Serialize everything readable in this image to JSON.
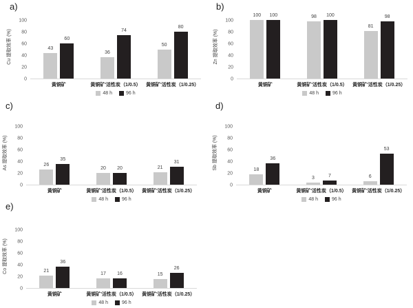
{
  "figure": {
    "panels": [
      "a)",
      "b)",
      "c)",
      "d)",
      "e)"
    ],
    "colors": {
      "bar_48h": "#c9c9c9",
      "bar_96h": "#231f20",
      "text": "#404040",
      "axis": "#d9d9d9"
    }
  },
  "chart_data": [
    {
      "panel": "a)",
      "type": "bar",
      "title": "",
      "xlabel": "",
      "ylabel": "Cu 提取效率 (%)",
      "ylim": [
        0,
        100
      ],
      "yticks": [
        0,
        20,
        40,
        60,
        80,
        100
      ],
      "grid": false,
      "legend_position": "bottom",
      "categories": [
        "黄铜矿",
        "黄铜矿'活性炭（1/0.5）",
        "黄铜矿'活性炭（1/0.25）"
      ],
      "series": [
        {
          "name": "48 h",
          "color": "#c9c9c9",
          "values": [
            43,
            36,
            50
          ]
        },
        {
          "name": "96 h",
          "color": "#231f20",
          "values": [
            60,
            74,
            80
          ]
        }
      ]
    },
    {
      "panel": "b)",
      "type": "bar",
      "title": "",
      "xlabel": "",
      "ylabel": "Zn 提取效率 (%)",
      "ylim": [
        0,
        100
      ],
      "yticks": [
        0,
        20,
        40,
        60,
        80,
        100
      ],
      "grid": false,
      "legend_position": "bottom",
      "categories": [
        "黄铜矿",
        "黄铜矿'活性炭（1/0.5）",
        "黄铜矿'活性炭（1/0.25）"
      ],
      "series": [
        {
          "name": "48 h",
          "color": "#c9c9c9",
          "values": [
            100,
            98,
            81
          ]
        },
        {
          "name": "96 h",
          "color": "#231f20",
          "values": [
            100,
            100,
            98
          ]
        }
      ]
    },
    {
      "panel": "c)",
      "type": "bar",
      "title": "",
      "xlabel": "",
      "ylabel": "As 提取效率 (%)",
      "ylim": [
        0,
        100
      ],
      "yticks": [
        0,
        20,
        40,
        60,
        80,
        100
      ],
      "grid": false,
      "legend_position": "bottom",
      "categories": [
        "黄铜矿",
        "黄铜矿'活性炭（1/0.5）",
        "黄铜矿'活性炭（1/0.25）"
      ],
      "series": [
        {
          "name": "48 h",
          "color": "#c9c9c9",
          "values": [
            26,
            20,
            21
          ]
        },
        {
          "name": "96 h",
          "color": "#231f20",
          "values": [
            35,
            20,
            31
          ]
        }
      ]
    },
    {
      "panel": "d)",
      "type": "bar",
      "title": "",
      "xlabel": "",
      "ylabel": "Sb 提取效率 (%)",
      "ylim": [
        0,
        100
      ],
      "yticks": [
        0,
        20,
        40,
        60,
        80,
        100
      ],
      "grid": false,
      "legend_position": "bottom",
      "categories": [
        "黄铜矿",
        "黄铜矿'活性炭（1/0.5）",
        "黄铜矿'活性炭（1/0.25）"
      ],
      "series": [
        {
          "name": "48 h",
          "color": "#c9c9c9",
          "values": [
            18,
            3,
            6
          ]
        },
        {
          "name": "96 h",
          "color": "#231f20",
          "values": [
            36,
            7,
            53
          ]
        }
      ]
    },
    {
      "panel": "e)",
      "type": "bar",
      "title": "",
      "xlabel": "",
      "ylabel": "Co 提取效率 (%)",
      "ylim": [
        0,
        100
      ],
      "yticks": [
        0,
        20,
        40,
        60,
        80,
        100
      ],
      "grid": false,
      "legend_position": "bottom",
      "categories": [
        "黄铜矿",
        "黄铜矿'活性炭（1/0.5）",
        "黄铜矿'活性炭（1/0.25）"
      ],
      "series": [
        {
          "name": "48 h",
          "color": "#c9c9c9",
          "values": [
            21,
            17,
            15
          ]
        },
        {
          "name": "96 h",
          "color": "#231f20",
          "values": [
            36,
            16,
            26
          ]
        }
      ]
    }
  ]
}
